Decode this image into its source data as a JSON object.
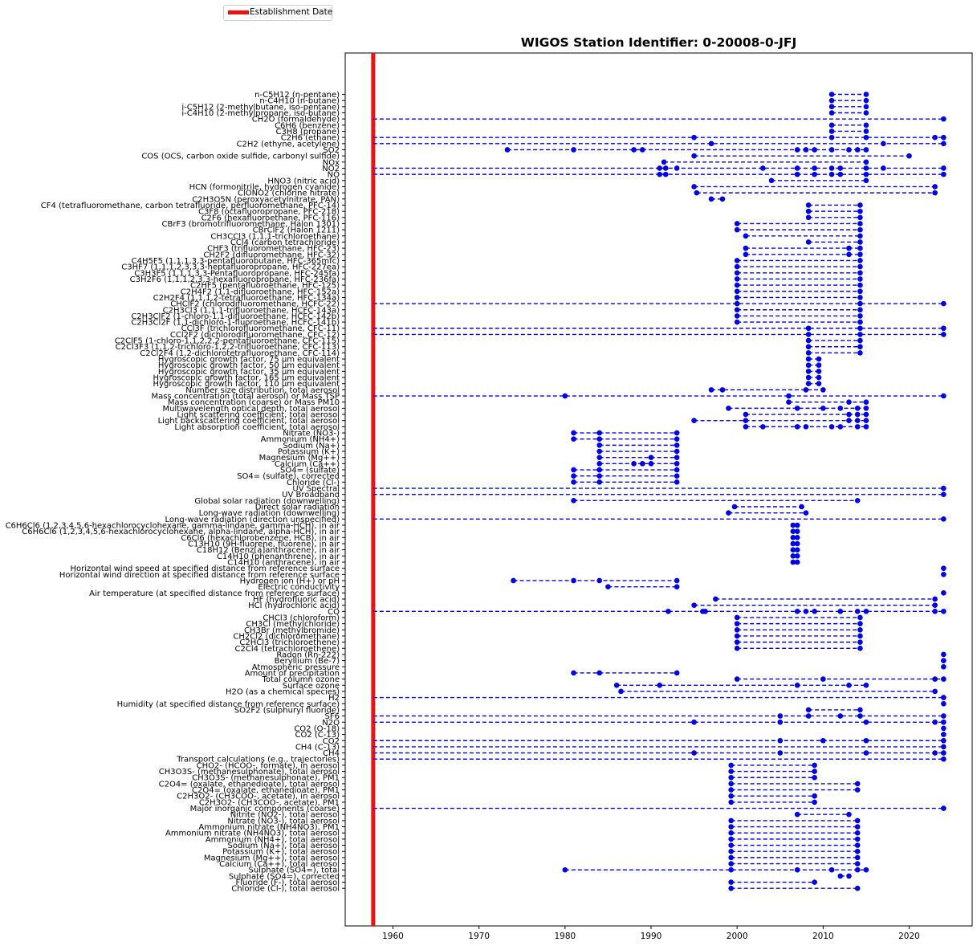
{
  "title": "WIGOS Station Identifier: 0-20008-0-JFJ",
  "legend": {
    "label": "Establishment Date",
    "color": "#ee1111"
  },
  "chart_data": {
    "type": "timeline",
    "title": "WIGOS Station Identifier: 0-20008-0-JFJ",
    "xlim": [
      1944.5,
      2027
    ],
    "xticks": [
      1960,
      1970,
      1980,
      1990,
      2000,
      2010,
      2020
    ],
    "establishment_date": 1957.7,
    "grid": false,
    "legend_position": "top-left, outside plot",
    "series_color": "#0000ee",
    "rows": [
      {
        "label": "n-C5H12 (n-pentane)",
        "points": [
          2011,
          2015
        ]
      },
      {
        "label": "n-C4H10 (n-butane)",
        "points": [
          2011,
          2015
        ]
      },
      {
        "label": "i-C5H12 (2-methylbutane, iso-pentane)",
        "points": [
          2011,
          2015
        ]
      },
      {
        "label": "i-C4H10 (2-methylpropane, iso-butane)",
        "points": [
          2011,
          2015
        ]
      },
      {
        "label": "CH2O (formaldehyde)",
        "points": [
          1957.7,
          2024
        ]
      },
      {
        "label": "C6H6 (benzene)",
        "points": [
          2011,
          2015
        ]
      },
      {
        "label": "C3H8 (propane)",
        "points": [
          2011,
          2015
        ]
      },
      {
        "label": "C2H6 (ethane)",
        "points": [
          1957.7,
          1995,
          2011,
          2015,
          2023,
          2024
        ]
      },
      {
        "label": "C2H2 (ethyne, acetylene)",
        "points": [
          1957.7,
          1997,
          2017,
          2024
        ]
      },
      {
        "label": "SO2",
        "points": [
          1973.3,
          1981,
          1988,
          1989,
          2007,
          2008,
          2009,
          2011,
          2013,
          2014,
          2015
        ]
      },
      {
        "label": "COS (OCS, carbon oxide sulfide, carbonyl sulfide)",
        "points": [
          1995,
          2020
        ]
      },
      {
        "label": "NOx",
        "points": [
          1991.5,
          2015
        ]
      },
      {
        "label": "NO2",
        "points": [
          1957.7,
          1991,
          1991.7,
          1993,
          2003,
          2007,
          2009,
          2011,
          2012,
          2015,
          2017,
          2024
        ]
      },
      {
        "label": "NO",
        "points": [
          1957.7,
          1991,
          1991.7,
          2007,
          2009,
          2011,
          2012,
          2015,
          2024
        ]
      },
      {
        "label": "HNO3 (nitric acid)",
        "points": [
          2004,
          2015
        ]
      },
      {
        "label": "HCN (formonitrile, hydrogen cyanide)",
        "points": [
          1995,
          2023
        ]
      },
      {
        "label": "ClONO2 (chlorine nitrate)",
        "points": [
          1995.3,
          2023
        ]
      },
      {
        "label": "C2H3O5N (peroxyacetylnitrate, PAN)",
        "points": [
          1997,
          1998.3
        ]
      },
      {
        "label": "CF4 (tetrafluoromethane, carbon tetrafluoride, perfluoromethane, PFC-14)",
        "points": [
          2008.3,
          2014.3
        ]
      },
      {
        "label": "C3F8 (octafluoropropane, PFC-218)",
        "points": [
          2008.3,
          2014.3
        ]
      },
      {
        "label": "C2F6 (hexafluoroethane, PFC-116)",
        "points": [
          2008.3,
          2014.3
        ]
      },
      {
        "label": "CBrF3 (bromotrifluoromethane, Halon 1301)",
        "points": [
          2000,
          2014.3
        ]
      },
      {
        "label": "CBrClF2 (Halon 1211)",
        "points": [
          2000,
          2014.3
        ]
      },
      {
        "label": "CH3CCl3 (1,1,1-trichloroethane)",
        "points": [
          2001,
          2014.3
        ]
      },
      {
        "label": "CCl4 (carbon tetrachloride)",
        "points": [
          2008.3,
          2014.3
        ]
      },
      {
        "label": "CHF3 (trifluoromethane, HFC-23)",
        "points": [
          2001,
          2013,
          2014.3
        ]
      },
      {
        "label": "CH2F2 (difluoromethane, HFC-32)",
        "points": [
          2001,
          2013,
          2014.3
        ]
      },
      {
        "label": "C4H5F5 (1,1,1,3,3-pentafluorobutane, HFC-365mfc)",
        "points": [
          2000,
          2014.3
        ]
      },
      {
        "label": "C3HF7 (1,1,1,2,3,3,3-heptafluoropropane, HFC-227ea)",
        "points": [
          2000,
          2014.3
        ]
      },
      {
        "label": "C3H3F5 (1,1,1,3,3-Pentafluoropropane, HFC-245fa)",
        "points": [
          2000,
          2014.3
        ]
      },
      {
        "label": "C3H2F6 (1,1,1,2,3,3-hexafluoropropane, HFC-236fa)",
        "points": [
          2000,
          2014.3
        ]
      },
      {
        "label": "C2HF5 (pentafluoroethane, HFC-125)",
        "points": [
          2000,
          2014.3
        ]
      },
      {
        "label": "C2H4F2 (1,1-difluoroethane, HFC-152a)",
        "points": [
          2000,
          2014.3
        ]
      },
      {
        "label": "C2H2F4 (1,1,1,2-tetrafluoroethane, HFC-134a)",
        "points": [
          2000,
          2014.3
        ]
      },
      {
        "label": "CHClF2 (chlorodifluoromethane, HCFC-22)",
        "points": [
          1957.7,
          2000,
          2014.3,
          2024
        ]
      },
      {
        "label": "C2H3Cl3 (1,1,1-trifluoroethane, HCFC-143a)",
        "points": [
          2000,
          2014.3
        ]
      },
      {
        "label": "C2H3ClF2 (1-chloro-1,1-difluoroethane, HCFC-142b)",
        "points": [
          2000,
          2014.3
        ]
      },
      {
        "label": "C2H3Cl2F (1,1-dichloro-1-fluoroethane, HCFC-141b)",
        "points": [
          2000,
          2014.3
        ]
      },
      {
        "label": "CCl3F (trichlorofluoromethane, CFC-11)",
        "points": [
          1957.7,
          2008.3,
          2014.3,
          2024
        ]
      },
      {
        "label": "CCl2F2 (dichlorodifluoromethane, CFC-12)",
        "points": [
          1957.7,
          2008.3,
          2014.3,
          2024
        ]
      },
      {
        "label": "C2ClF5 (1-chloro-1,1,2,2,2-pentafluoroethane, CFC-115)",
        "points": [
          2008.3,
          2014.3
        ]
      },
      {
        "label": "C2Cl3F3 (1,1,2-trichloro-1,2,2-trifluoroethane, CFC-113)",
        "points": [
          2008.3,
          2014.3
        ]
      },
      {
        "label": "C2Cl2F4 (1,2-dichlorotetrafluoroethane, CFC-114)",
        "points": [
          2008.3,
          2014.3
        ]
      },
      {
        "label": "Hygroscopic growth factor, 75 µm equivalent",
        "points": [
          2008.3,
          2009.5
        ]
      },
      {
        "label": "Hygroscopic growth factor, 50 µm equivalent",
        "points": [
          2008.3,
          2009.5
        ]
      },
      {
        "label": "Hygroscopic growth factor, 35 µm equivalent",
        "points": [
          2008.3,
          2009.5
        ]
      },
      {
        "label": "Hygroscopic growth factor, 165 µm equivalent",
        "points": [
          2008.3,
          2009.5
        ]
      },
      {
        "label": "Hygroscopic growth factor, 110 µm equivalent",
        "points": [
          2008.3,
          2009.5
        ]
      },
      {
        "label": "Number size distribution, total aerosol",
        "points": [
          1997,
          1998.3,
          2008,
          2010
        ]
      },
      {
        "label": "Mass concentration (total aerosol) or Mass TSP",
        "points": [
          1957.7,
          1980,
          2006,
          2024
        ]
      },
      {
        "label": "Mass concentration (coarse) or Mass PM10",
        "points": [
          2006,
          2013,
          2015
        ]
      },
      {
        "label": "Multiwavelength optical depth, total aerosol",
        "points": [
          1999,
          2007,
          2010,
          2012,
          2014,
          2015
        ]
      },
      {
        "label": "Light scattering coefficient, total aerosol",
        "points": [
          2001,
          2013,
          2014,
          2015
        ]
      },
      {
        "label": "Light backscattering coefficient, total aerosol",
        "points": [
          1995,
          2001,
          2013,
          2014,
          2015
        ]
      },
      {
        "label": "Light absorption coefficient, total aerosol",
        "points": [
          2001,
          2003,
          2007,
          2008,
          2011,
          2012,
          2014,
          2015
        ]
      },
      {
        "label": "Nitrate (NO3-)",
        "points": [
          1981,
          1984,
          1993
        ]
      },
      {
        "label": "Ammonium (NH4+)",
        "points": [
          1981,
          1984,
          1993
        ]
      },
      {
        "label": "Sodium (Na+)",
        "points": [
          1984,
          1993
        ]
      },
      {
        "label": "Potassium (K+)",
        "points": [
          1984,
          1993
        ]
      },
      {
        "label": "Magnesium (Mg++)",
        "points": [
          1984,
          1990,
          1993
        ]
      },
      {
        "label": "Calcium (Ca++)",
        "points": [
          1984,
          1988,
          1989,
          1990,
          1993
        ]
      },
      {
        "label": "SO4= (sulfate)",
        "points": [
          1981,
          1984,
          1993
        ]
      },
      {
        "label": "SO4= (sulfate), corrected",
        "points": [
          1981,
          1984,
          1993
        ]
      },
      {
        "label": "Chloride (Cl-)",
        "points": [
          1981,
          1984,
          1993
        ]
      },
      {
        "label": "UV Spectral",
        "points": [
          1957.7,
          2024
        ]
      },
      {
        "label": "UV Broadband",
        "points": [
          1957.7,
          2024
        ]
      },
      {
        "label": "Global solar radiation (downwelling)",
        "points": [
          1981,
          2014
        ]
      },
      {
        "label": "Direct solar radiation",
        "points": [
          1999.7,
          2007.5
        ]
      },
      {
        "label": "Long-wave radiation (downwelling)",
        "points": [
          1999,
          2008
        ]
      },
      {
        "label": "Long-wave radiation (direction unspecified)",
        "points": [
          1957.7,
          2024
        ]
      },
      {
        "label": "C6H6Cl6 (1,2,3,4,5,6-hexachlorocyclohexane, gamma-lindane, gamma-HCH), in air",
        "points": [
          2006.5,
          2007
        ]
      },
      {
        "label": "C6H6Cl6 (1,2,3,4,5,6-hexachlorocyclohexane, alpha-lindane, alpha-HCH), in air",
        "points": [
          2006.5,
          2007
        ]
      },
      {
        "label": "C6Cl6 (hexachlorobenzene, HCB), in air",
        "points": [
          2006.5,
          2007
        ]
      },
      {
        "label": "C13H10 (9H-fluorene, fluorene), in air",
        "points": [
          2006.5,
          2007
        ]
      },
      {
        "label": "C18H12 (Benz[a]anthracene), in air",
        "points": [
          2006.5,
          2007
        ]
      },
      {
        "label": "C14H10 (phenanthrene), in air",
        "points": [
          2006.5,
          2007
        ]
      },
      {
        "label": "C14H10 (anthracene), in air",
        "points": [
          2006.5,
          2007
        ]
      },
      {
        "label": "Horizontal wind speed at specified distance from reference surface",
        "points": [
          2024
        ]
      },
      {
        "label": "Horizontal wind direction at specified distance from reference surface",
        "points": [
          2024
        ]
      },
      {
        "label": "Hydrogen ion (H+) or pH",
        "points": [
          1974,
          1981,
          1984,
          1993
        ]
      },
      {
        "label": "Electric conductivity",
        "points": [
          1985,
          1993
        ]
      },
      {
        "label": "Air temperature (at specified distance from reference surface)",
        "points": [
          2024
        ]
      },
      {
        "label": "HF (hydrofluoric acid)",
        "points": [
          1997.5,
          2023
        ]
      },
      {
        "label": "HCl (hydrochloric acid)",
        "points": [
          1995,
          2023
        ]
      },
      {
        "label": "CO",
        "points": [
          1957.7,
          1992,
          1996,
          1996.3,
          2007,
          2008,
          2009,
          2012,
          2014,
          2015,
          2023,
          2024
        ]
      },
      {
        "label": "CHCl3 (chloroform)",
        "points": [
          2000,
          2014.3
        ]
      },
      {
        "label": "CH3Cl (methylchloride)",
        "points": [
          2000,
          2014.3
        ]
      },
      {
        "label": "CH3Br (methylbromide)",
        "points": [
          2000,
          2014.3
        ]
      },
      {
        "label": "CH2Cl2 (dichloromethane)",
        "points": [
          2000,
          2014.3
        ]
      },
      {
        "label": "C2HCl3 (trichloroethene)",
        "points": [
          2000,
          2014.3
        ]
      },
      {
        "label": "C2Cl4 (tetrachloroethene)",
        "points": [
          2000,
          2014.3
        ]
      },
      {
        "label": "Radon (Rn-222)",
        "points": [
          2024
        ]
      },
      {
        "label": "Beryllium (Be-7)",
        "points": [
          2024
        ]
      },
      {
        "label": "Atmospheric pressure",
        "points": [
          2024
        ]
      },
      {
        "label": "Amount of precipitation",
        "points": [
          1981,
          1984,
          1993
        ]
      },
      {
        "label": "Total column ozone",
        "points": [
          2000,
          2010,
          2023,
          2024
        ]
      },
      {
        "label": "Surface ozone",
        "points": [
          1986,
          1991,
          2007,
          2013,
          2015
        ]
      },
      {
        "label": "H2O (as a chemical species)",
        "points": [
          1986.5,
          2023
        ]
      },
      {
        "label": "H2",
        "points": [
          1957.7,
          2024
        ]
      },
      {
        "label": "Humidity  (at specified distance from reference surface)",
        "points": [
          2024
        ]
      },
      {
        "label": "SO2F2 (sulphuryl fluoride)",
        "points": [
          2008.3,
          2014.3
        ]
      },
      {
        "label": "SF6",
        "points": [
          1957.7,
          2005,
          2008.3,
          2012,
          2014.3,
          2024
        ]
      },
      {
        "label": "N2O",
        "points": [
          1957.7,
          1995,
          2005,
          2015,
          2023,
          2024
        ]
      },
      {
        "label": "CO2 (O-18)",
        "points": [
          2024
        ]
      },
      {
        "label": "CO2 (C-13)",
        "points": [
          2024
        ]
      },
      {
        "label": "CO2",
        "points": [
          1957.7,
          2005,
          2010,
          2015,
          2024
        ]
      },
      {
        "label": "CH4 (C-13)",
        "points": [
          1957.7,
          2024
        ]
      },
      {
        "label": "CH4",
        "points": [
          1957.7,
          1995,
          2005,
          2015,
          2023,
          2024
        ]
      },
      {
        "label": "Transport calculations (e.g., trajectories)",
        "points": [
          1957.7,
          2024
        ]
      },
      {
        "label": "CHO2- (HCOO-, formate), in aerosol",
        "points": [
          1999.3,
          2009
        ]
      },
      {
        "label": "CH3O3S- (methanesulphonate), total aerosol",
        "points": [
          1999.3,
          2009
        ]
      },
      {
        "label": "CH3O3S- (methanesulphonate), PM1",
        "points": [
          1999.3,
          2009
        ]
      },
      {
        "label": "C2O4= (oxalate, ethanedioate), total aerosol",
        "points": [
          1999.3,
          2014
        ]
      },
      {
        "label": "C2O4= (oxalate, ethanedioate), PM1",
        "points": [
          1999.3,
          2014
        ]
      },
      {
        "label": "C2H3O2- (CH3COO-, acetate), in aerosol",
        "points": [
          1999.3,
          2009
        ]
      },
      {
        "label": "C2H3O2- (CH3COO-, acetate), PM1",
        "points": [
          1999.3,
          2009
        ]
      },
      {
        "label": "Major inorganic components (coarse)",
        "points": [
          1957.7,
          2024
        ]
      },
      {
        "label": "Nitrite (NO2-), total aerosol",
        "points": [
          2007,
          2013
        ]
      },
      {
        "label": "Nitrate (NO3-), total aerosol",
        "points": [
          1999.3,
          2014
        ]
      },
      {
        "label": "Ammonium nitrate (NH4NO3), PM1",
        "points": [
          1999.3,
          2014
        ]
      },
      {
        "label": "Ammonium nitrate (NH4NO3), total aerosol",
        "points": [
          1999.3,
          2014
        ]
      },
      {
        "label": "Ammonium (NH4+), total aerosol",
        "points": [
          1999.3,
          2014
        ]
      },
      {
        "label": "Sodium (Na+), total aerosol",
        "points": [
          1999.3,
          2014
        ]
      },
      {
        "label": "Potassium (K+), total aerosol",
        "points": [
          1999.3,
          2014
        ]
      },
      {
        "label": "Magnesium (Mg++), total aerosol",
        "points": [
          1999.3,
          2014
        ]
      },
      {
        "label": "Calcium (Ca++), total aerosol",
        "points": [
          1999.3,
          2014
        ]
      },
      {
        "label": "Sulphate (SO4=), total",
        "points": [
          1980,
          1999.3,
          2007,
          2011,
          2014,
          2015
        ]
      },
      {
        "label": "Sulphate (SO4=), corrected",
        "points": [
          2012,
          2013
        ]
      },
      {
        "label": "Fluoride (F-), total aerosol",
        "points": [
          1999.3,
          2009
        ]
      },
      {
        "label": "Chloride (Cl-), total aerosol",
        "points": [
          1999.3,
          2014
        ]
      }
    ]
  }
}
